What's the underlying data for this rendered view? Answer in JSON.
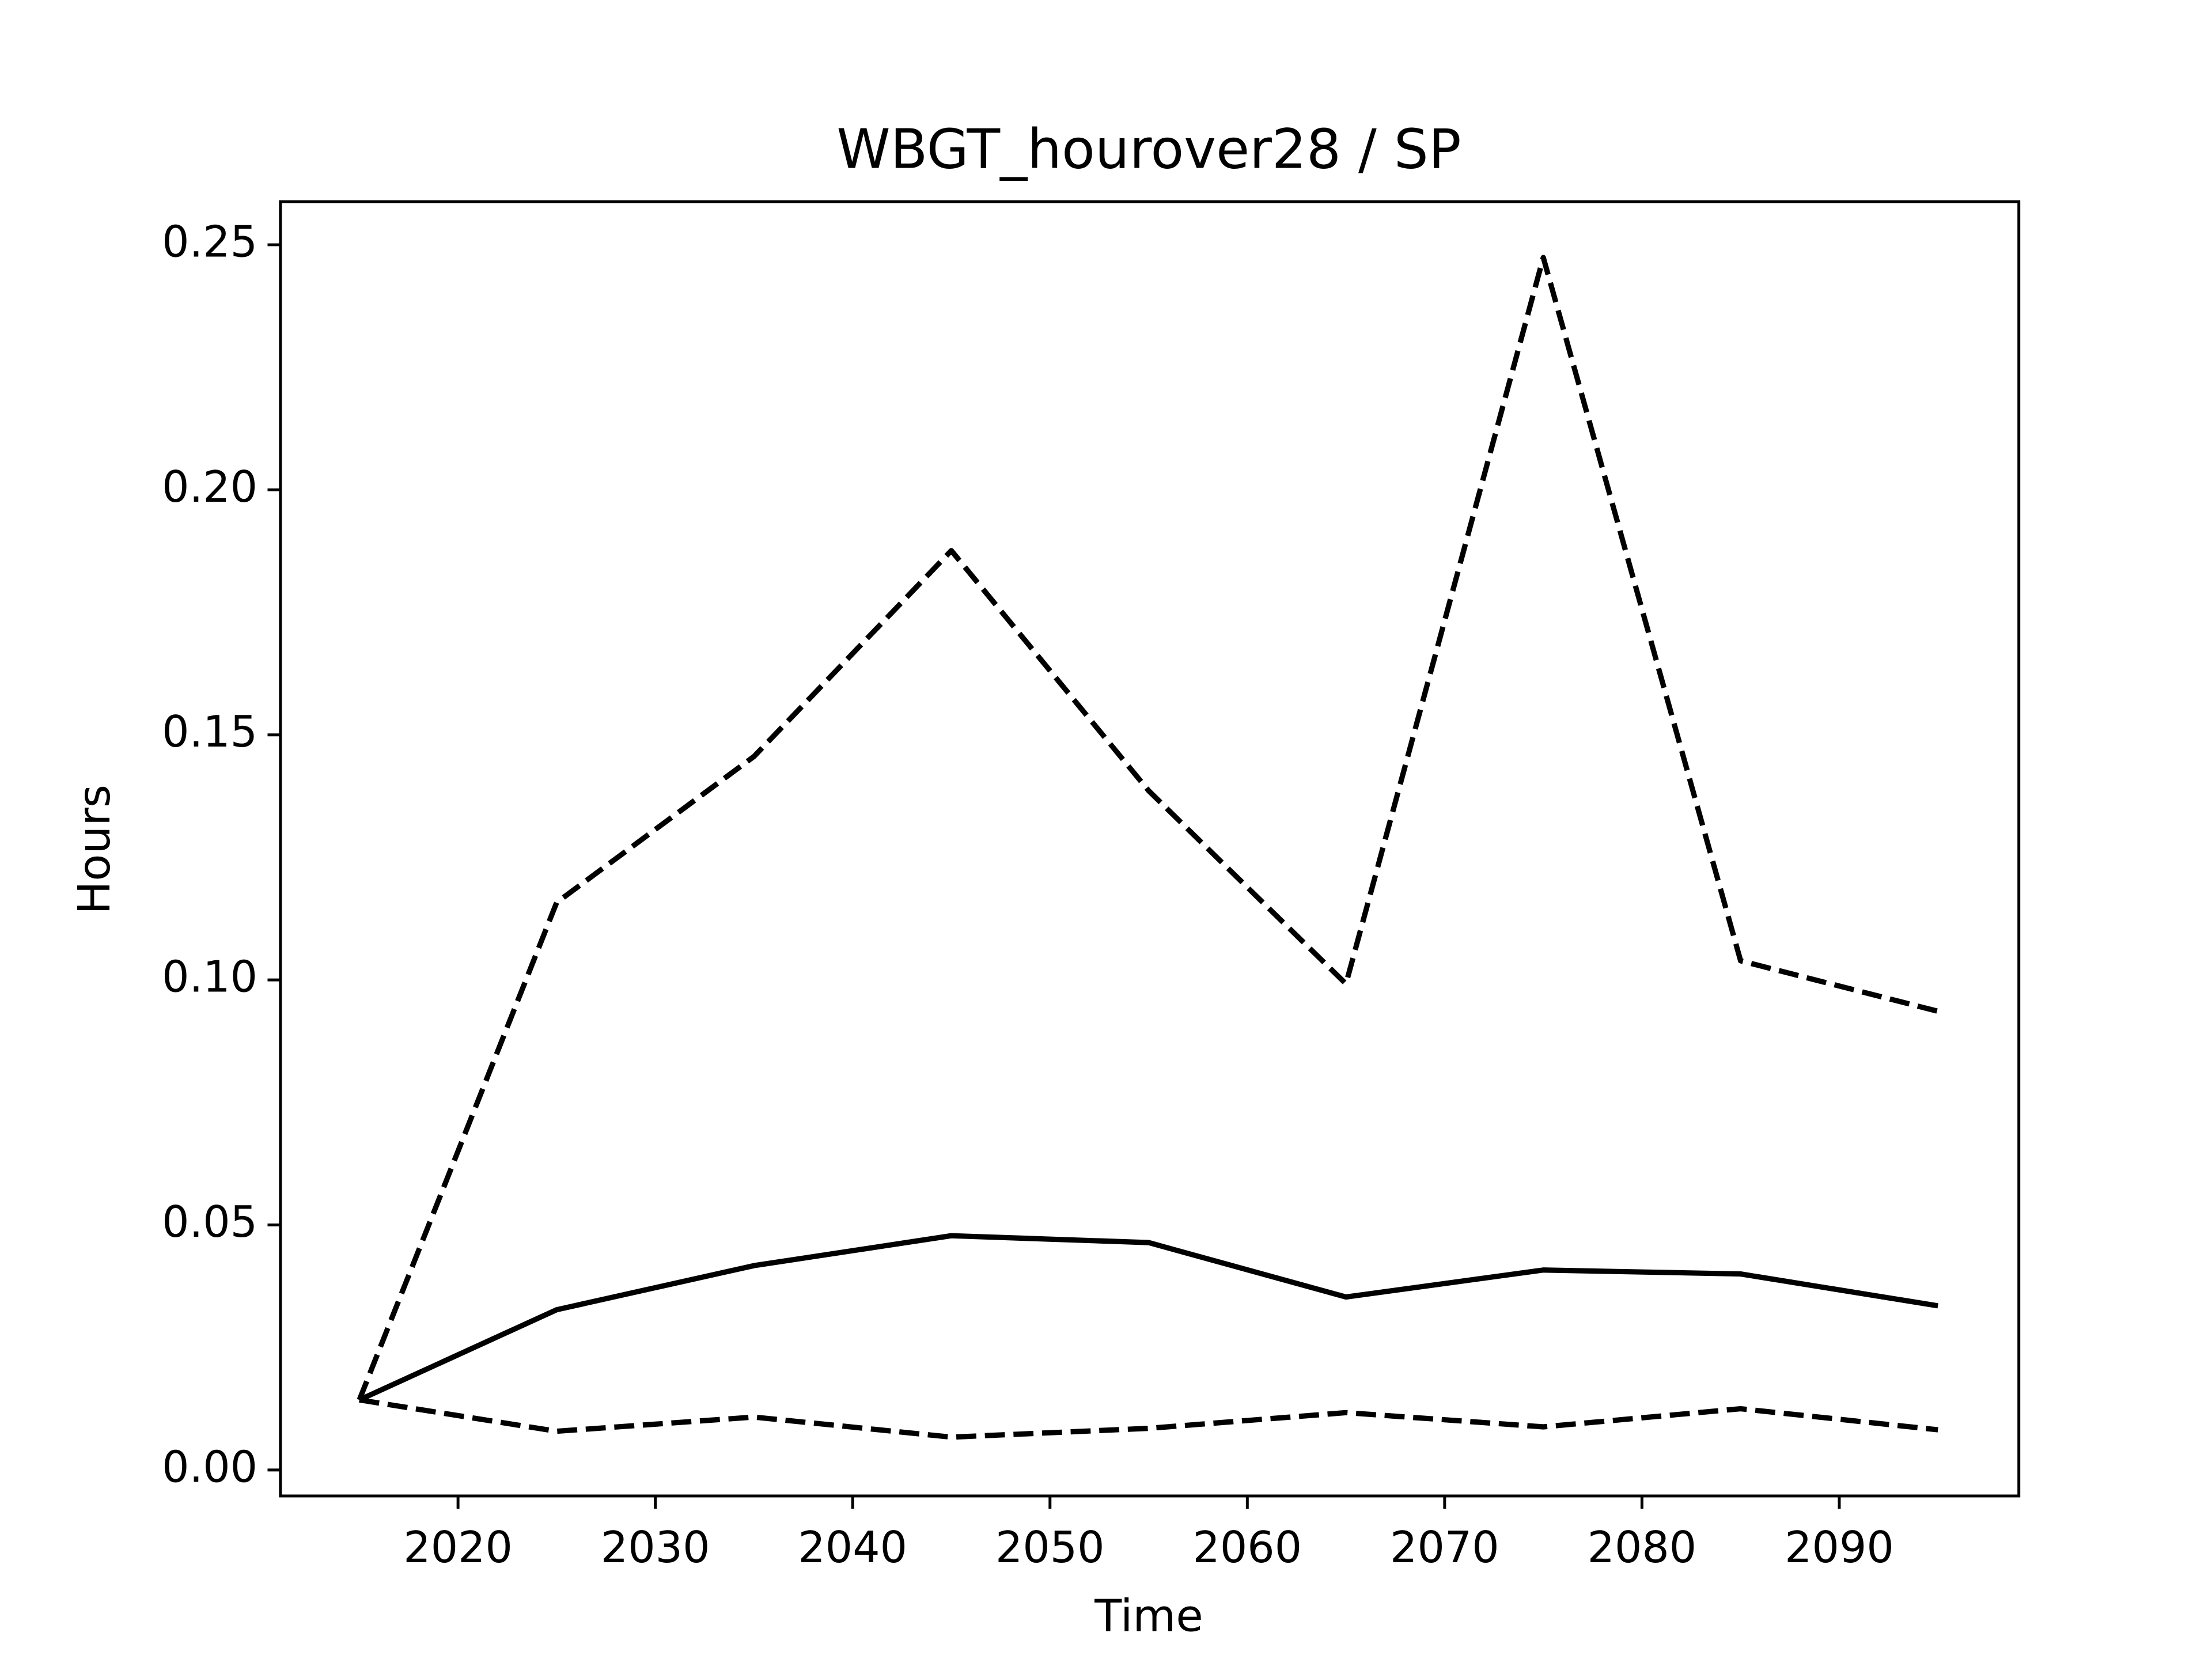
{
  "chart_data": {
    "type": "line",
    "title": "WBGT_hourover28 / SP",
    "xlabel": "Time",
    "ylabel": "Hours",
    "x": [
      2015,
      2025,
      2035,
      2045,
      2055,
      2065,
      2075,
      2085,
      2095
    ],
    "series": [
      {
        "color": "#000000",
        "linestyle": "solid",
        "values": [
          0.0143,
          0.0327,
          0.0417,
          0.0478,
          0.0464,
          0.0353,
          0.0408,
          0.04,
          0.0335
        ]
      },
      {
        "color": "#000000",
        "linestyle": "dashed",
        "values": [
          0.0143,
          0.1158,
          0.1456,
          0.1876,
          0.1386,
          0.0992,
          0.2474,
          0.1039,
          0.0936
        ]
      },
      {
        "color": "#000000",
        "linestyle": "dashed",
        "values": [
          0.0143,
          0.0079,
          0.0108,
          0.0067,
          0.0085,
          0.0117,
          0.0088,
          0.0125,
          0.0082
        ]
      }
    ],
    "xlim": [
      2011.0,
      2099.1
    ],
    "ylim": [
      -0.0053,
      0.2588
    ],
    "xticks": [
      2020,
      2030,
      2040,
      2050,
      2060,
      2070,
      2080,
      2090
    ],
    "yticks": [
      {
        "value": 0,
        "label": "0.00"
      },
      {
        "value": 0.05,
        "label": "0.05"
      },
      {
        "value": 0.1,
        "label": "0.10"
      },
      {
        "value": 0.15,
        "label": "0.15"
      },
      {
        "value": 0.2,
        "label": "0.20"
      },
      {
        "value": 0.25,
        "label": "0.25"
      }
    ],
    "grid": false
  }
}
